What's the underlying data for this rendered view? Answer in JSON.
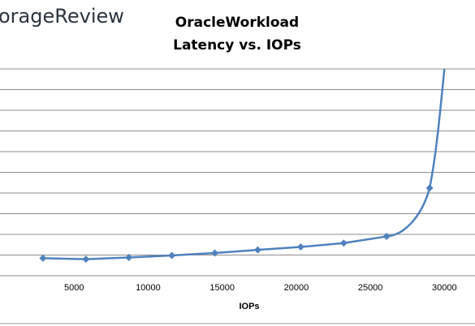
{
  "brand": {
    "logo_text": "orageReview"
  },
  "chart_data": {
    "type": "line",
    "title": "OracleWorkload",
    "subtitle": "Latency vs. IOPs",
    "xlabel": "IOPs",
    "ylabel": "",
    "xlim": [
      0,
      32000
    ],
    "ylim": [
      0,
      10
    ],
    "x_ticks": [
      5000,
      10000,
      15000,
      20000,
      25000,
      30000
    ],
    "grid": true,
    "legend": "none",
    "series": [
      {
        "color": "#4f81bd",
        "points": [
          {
            "x": 2900,
            "y": 0.85
          },
          {
            "x": 5800,
            "y": 0.8
          },
          {
            "x": 8700,
            "y": 0.88
          },
          {
            "x": 11600,
            "y": 0.98
          },
          {
            "x": 14500,
            "y": 1.1
          },
          {
            "x": 17400,
            "y": 1.25
          },
          {
            "x": 20300,
            "y": 1.39
          },
          {
            "x": 23200,
            "y": 1.58
          },
          {
            "x": 26100,
            "y": 1.9
          },
          {
            "x": 29000,
            "y": 4.24
          }
        ],
        "tail_end": {
          "x": 30000,
          "y": 10
        }
      }
    ]
  }
}
